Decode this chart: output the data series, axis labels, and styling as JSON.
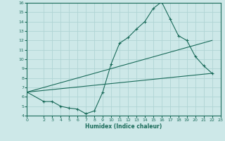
{
  "xlabel": "Humidex (Indice chaleur)",
  "ylabel": "",
  "bg_color": "#cde8e8",
  "line_color": "#1a6b5a",
  "grid_color": "#b0d4d4",
  "xlim": [
    0,
    23
  ],
  "ylim": [
    4,
    16
  ],
  "xticks": [
    0,
    2,
    3,
    4,
    5,
    6,
    7,
    8,
    9,
    10,
    11,
    12,
    13,
    14,
    15,
    16,
    17,
    18,
    19,
    20,
    21,
    22,
    23
  ],
  "yticks": [
    4,
    5,
    6,
    7,
    8,
    9,
    10,
    11,
    12,
    13,
    14,
    15,
    16
  ],
  "curve1_x": [
    0,
    2,
    3,
    4,
    5,
    6,
    7,
    8,
    9,
    10,
    11,
    12,
    13,
    14,
    15,
    16,
    17,
    18,
    19,
    20,
    21,
    22
  ],
  "curve1_y": [
    6.5,
    5.5,
    5.5,
    5.0,
    4.8,
    4.7,
    4.2,
    4.5,
    6.5,
    9.5,
    11.7,
    12.3,
    13.2,
    14.0,
    15.4,
    16.1,
    14.3,
    12.5,
    12.0,
    10.3,
    9.3,
    8.5
  ],
  "curve2_x": [
    0,
    22
  ],
  "curve2_y": [
    6.5,
    8.5
  ],
  "curve3_x": [
    0,
    22
  ],
  "curve3_y": [
    6.5,
    12.0
  ]
}
